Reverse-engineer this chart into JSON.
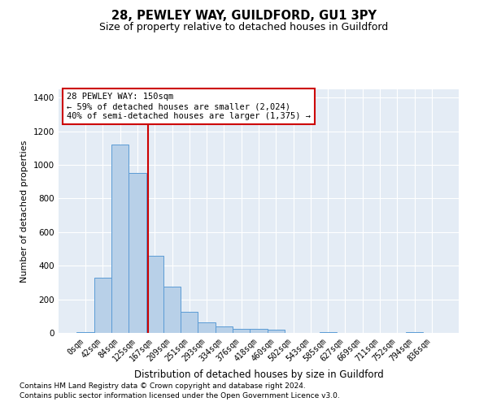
{
  "title": "28, PEWLEY WAY, GUILDFORD, GU1 3PY",
  "subtitle": "Size of property relative to detached houses in Guildford",
  "xlabel": "Distribution of detached houses by size in Guildford",
  "ylabel": "Number of detached properties",
  "categories": [
    "0sqm",
    "42sqm",
    "84sqm",
    "125sqm",
    "167sqm",
    "209sqm",
    "251sqm",
    "293sqm",
    "334sqm",
    "376sqm",
    "418sqm",
    "460sqm",
    "502sqm",
    "543sqm",
    "585sqm",
    "627sqm",
    "669sqm",
    "711sqm",
    "752sqm",
    "794sqm",
    "836sqm"
  ],
  "values": [
    5,
    330,
    1120,
    950,
    460,
    275,
    125,
    65,
    40,
    25,
    25,
    20,
    0,
    0,
    5,
    0,
    0,
    0,
    0,
    5,
    0
  ],
  "bar_color": "#b8d0e8",
  "bar_edge_color": "#5b9bd5",
  "plot_bg_color": "#e4ecf5",
  "vline_color": "#cc0000",
  "vline_x": 3.62,
  "annotation_text": "28 PEWLEY WAY: 150sqm\n← 59% of detached houses are smaller (2,024)\n40% of semi-detached houses are larger (1,375) →",
  "annotation_box_color": "#ffffff",
  "annotation_box_edge": "#cc0000",
  "ylim": [
    0,
    1450
  ],
  "yticks": [
    0,
    200,
    400,
    600,
    800,
    1000,
    1200,
    1400
  ],
  "footer1": "Contains HM Land Registry data © Crown copyright and database right 2024.",
  "footer2": "Contains public sector information licensed under the Open Government Licence v3.0."
}
